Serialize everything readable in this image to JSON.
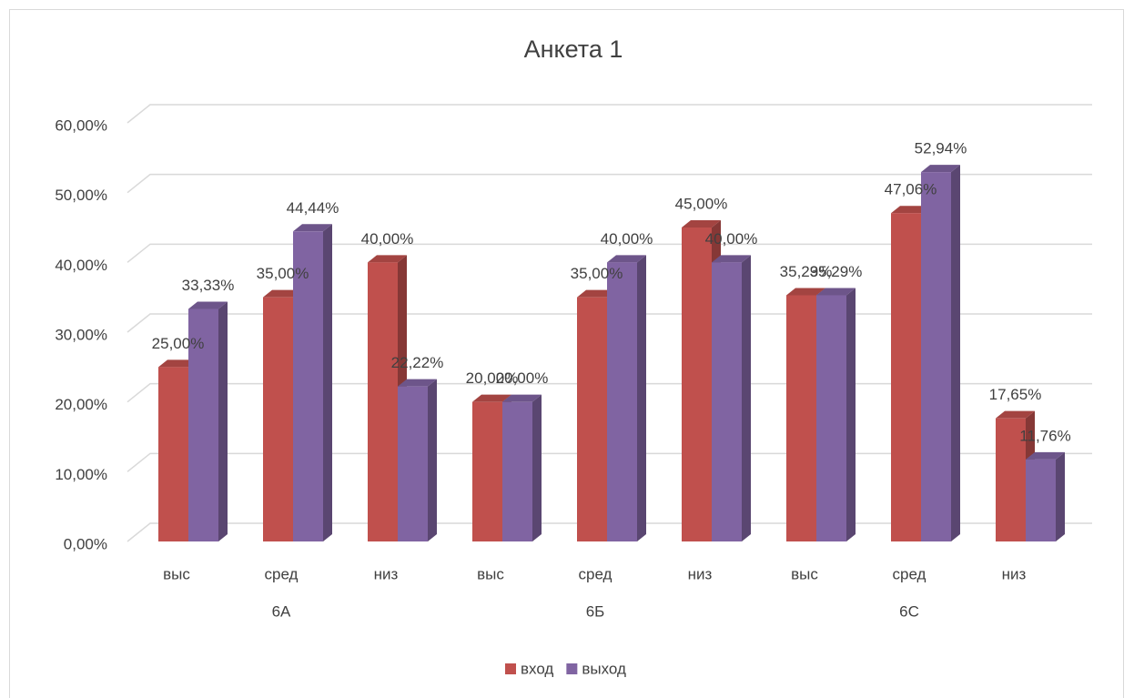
{
  "chart_data": {
    "type": "bar3d",
    "title": "Анкета 1",
    "categories": [
      "выс",
      "сред",
      "низ",
      "выс",
      "сред",
      "низ",
      "выс",
      "сред",
      "низ"
    ],
    "groups": [
      "6А",
      "6Б",
      "6С"
    ],
    "series": [
      {
        "name": "вход",
        "color": "#c0504d",
        "values": [
          25,
          35,
          40,
          20,
          35,
          45,
          35.29,
          47.06,
          17.65
        ],
        "value_labels": [
          "25,00%",
          "35,00%",
          "40,00%",
          "20,00%",
          "35,00%",
          "45,00%",
          "35,29%",
          "47,06%",
          "17,65%"
        ]
      },
      {
        "name": "выход",
        "color": "#8064a2",
        "values": [
          33.33,
          44.44,
          22.22,
          20,
          40,
          40,
          35.29,
          52.94,
          11.76
        ],
        "value_labels": [
          "33,33%",
          "44,44%",
          "22,22%",
          "20,00%",
          "40,00%",
          "40,00%",
          "35,29%",
          "52,94%",
          "11,76%"
        ]
      }
    ],
    "ylim": [
      0,
      60
    ],
    "yticks": [
      {
        "value": 0,
        "label": "0,00%"
      },
      {
        "value": 10,
        "label": "10,00%"
      },
      {
        "value": 20,
        "label": "20,00%"
      },
      {
        "value": 30,
        "label": "30,00%"
      },
      {
        "value": 40,
        "label": "40,00%"
      },
      {
        "value": 50,
        "label": "50,00%"
      },
      {
        "value": 60,
        "label": "60,00%"
      }
    ],
    "grid": true,
    "legend": "bottom"
  }
}
